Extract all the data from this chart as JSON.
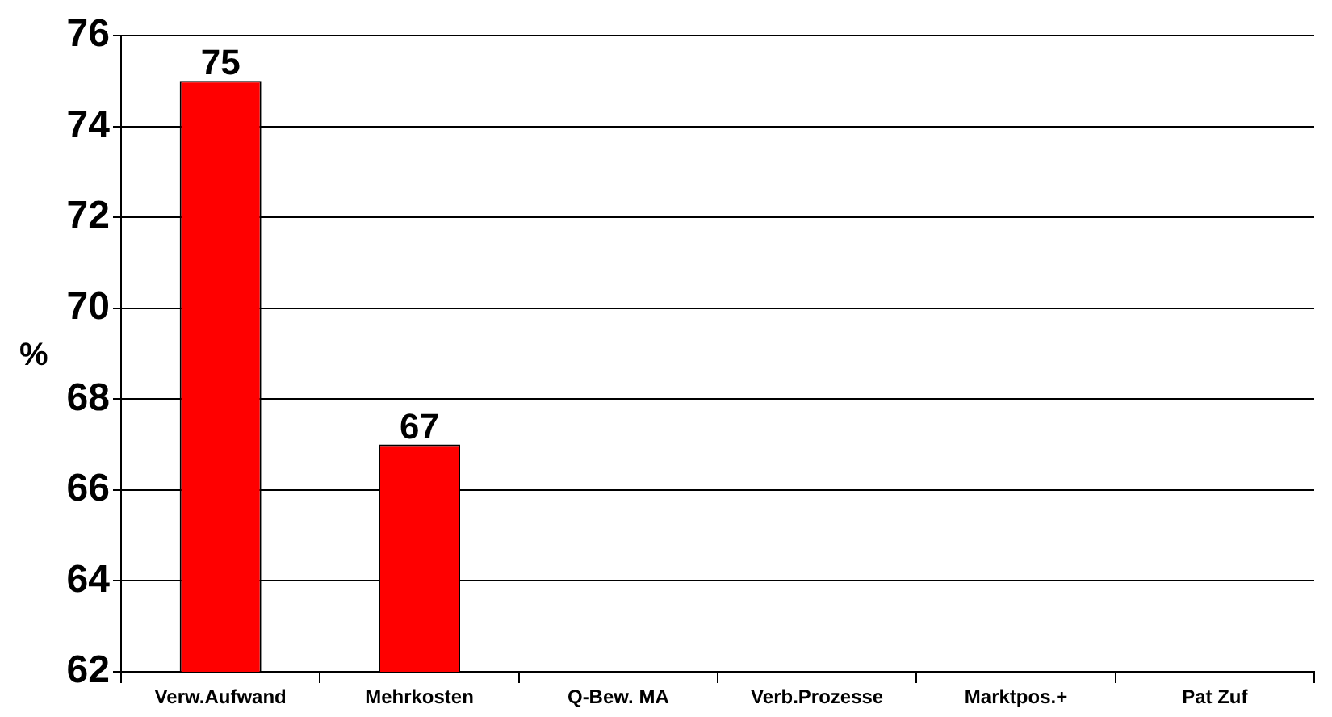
{
  "chart_data": {
    "type": "bar",
    "ylabel": "%",
    "categories": [
      "Verw.Aufwand",
      "Mehrkosten",
      "Q-Bew. MA",
      "Verb.Prozesse",
      "Marktpos.+",
      "Pat Zuf"
    ],
    "values": [
      75,
      67,
      null,
      null,
      null,
      null
    ],
    "color": "#ff0000",
    "ylim": [
      62,
      76
    ],
    "yticks": [
      62,
      64,
      66,
      68,
      70,
      72,
      74,
      76
    ],
    "grid": "y",
    "data_labels": true
  }
}
